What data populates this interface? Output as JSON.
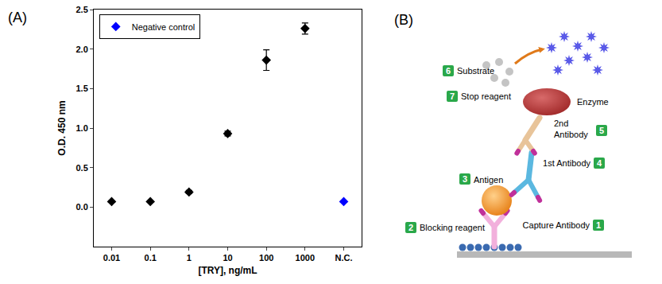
{
  "chart_data": {
    "type": "scatter",
    "annotations": [
      "(A)"
    ],
    "x_label": "[TRY], ng/mL",
    "y_label": "O.D. 450 nm",
    "categories": [
      "0.01",
      "0.1",
      "1",
      "10",
      "100",
      "1000",
      "N.C."
    ],
    "series": [
      {
        "values": [
          0.07,
          0.07,
          0.19,
          0.93,
          1.86,
          2.26,
          null
        ],
        "errors": [
          0.01,
          0.01,
          0.02,
          0.03,
          0.13,
          0.07,
          null
        ],
        "color": "#000000",
        "marker": "diamond"
      },
      {
        "name": "Negative control",
        "values": [
          null,
          null,
          null,
          null,
          null,
          null,
          0.07
        ],
        "errors": [
          null,
          null,
          null,
          null,
          null,
          null,
          0.01
        ],
        "color": "#0000ff",
        "marker": "diamond"
      }
    ],
    "ylim": [
      -0.5,
      2.5
    ],
    "yticks": [
      {
        "value": 0,
        "label": "0.0"
      },
      0.5,
      {
        "value": 1,
        "label": "1.0"
      },
      1.5,
      {
        "value": 2,
        "label": "2.0"
      },
      2.5
    ],
    "grid": false,
    "legend": "upper left"
  },
  "diagram": {
    "panel_label": "(B)",
    "steps": [
      {
        "step": 1,
        "lines": [
          "Capture Antibody"
        ]
      },
      {
        "step": 2,
        "lines": [
          "Blocking reagent"
        ]
      },
      {
        "step": 3,
        "lines": [
          "Antigen"
        ]
      },
      {
        "step": 4,
        "lines": [
          "1st Antibody"
        ]
      },
      {
        "step": 5,
        "lines": [
          "2nd",
          "Antibody"
        ]
      },
      {
        "step": 6,
        "lines": [
          "Substrate"
        ]
      },
      {
        "step": 7,
        "lines": [
          "Stop reagent"
        ]
      }
    ],
    "enzyme": "Enzyme"
  }
}
